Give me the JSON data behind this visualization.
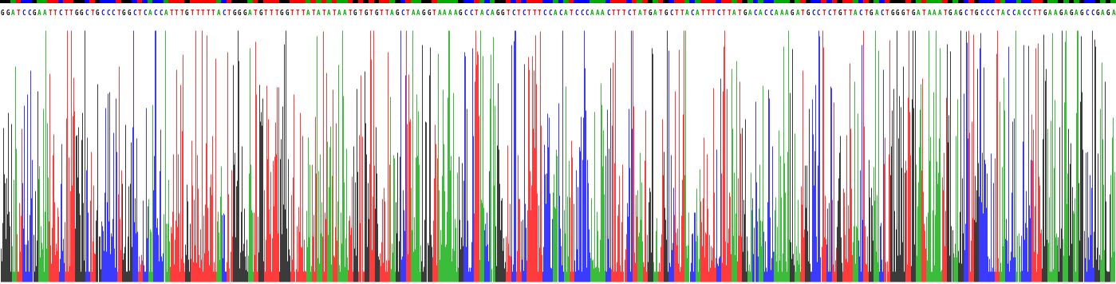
{
  "sequence": "GGATCCGAATTCTTGGCTGCCCTGGCTCACCATTTGTTTTTACTGGGATGTTTGGTTTATATATAATGTGTGTTAGCTAAGGTAAAAGCCTACAGGTCTCTTTCCACATCCCAAACTTTCTATGATGCTTACATTTCTTATGACACCAAAGATGCCTCTGTTACTGACTGGGTGATAAATGAGCTGCCCTACCACCTTGAAGAGAGCCGAGA",
  "base_colors": {
    "A": "#00AA00",
    "T": "#FF0000",
    "G": "#000000",
    "C": "#0000FF"
  },
  "bg_color": "#FFFFFF",
  "n_traces": 1380,
  "fig_width": 13.99,
  "fig_height": 3.56,
  "dpi": 100,
  "text_fontsize": 5.5,
  "lw": 0.55
}
